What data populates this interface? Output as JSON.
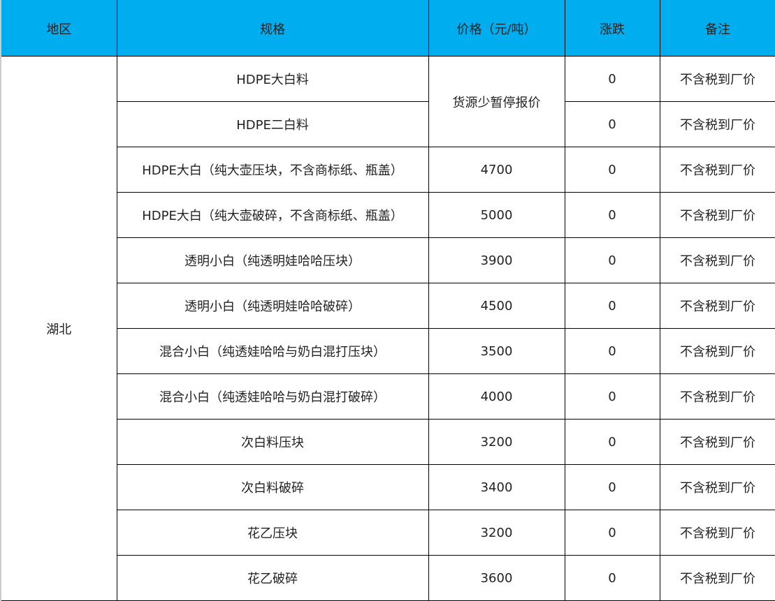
{
  "header": {
    "region": "地区",
    "spec": "规格",
    "price": "价格（元/吨）",
    "change": "涨跌",
    "note": "备注"
  },
  "header_color": "#00AEEF",
  "region": "湖北",
  "merged_price": "货源少暂停报价",
  "rows": [
    {
      "spec": "HDPE大白料",
      "change": "0",
      "note": "不含税到厂价"
    },
    {
      "spec": "HDPE二白料",
      "change": "0",
      "note": "不含税到厂价"
    },
    {
      "spec": "HDPE大白（纯大壶压块，不含商标纸、瓶盖）",
      "price": "4700",
      "change": "0",
      "note": "不含税到厂价"
    },
    {
      "spec": "HDPE大白（纯大壶破碎，不含商标纸、瓶盖）",
      "price": "5000",
      "change": "0",
      "note": "不含税到厂价"
    },
    {
      "spec": "透明小白（纯透明娃哈哈压块）",
      "price": "3900",
      "change": "0",
      "note": "不含税到厂价"
    },
    {
      "spec": "透明小白（纯透明娃哈哈破碎）",
      "price": "4500",
      "change": "0",
      "note": "不含税到厂价"
    },
    {
      "spec": "混合小白（纯透娃哈哈与奶白混打压块）",
      "price": "3500",
      "change": "0",
      "note": "不含税到厂价"
    },
    {
      "spec": "混合小白（纯透娃哈哈与奶白混打破碎）",
      "price": "4000",
      "change": "0",
      "note": "不含税到厂价"
    },
    {
      "spec": "次白料压块",
      "price": "3200",
      "change": "0",
      "note": "不含税到厂价"
    },
    {
      "spec": "次白料破碎",
      "price": "3400",
      "change": "0",
      "note": "不含税到厂价"
    },
    {
      "spec": "花乙压块",
      "price": "3200",
      "change": "0",
      "note": "不含税到厂价"
    },
    {
      "spec": "花乙破碎",
      "price": "3600",
      "change": "0",
      "note": "不含税到厂价"
    }
  ]
}
